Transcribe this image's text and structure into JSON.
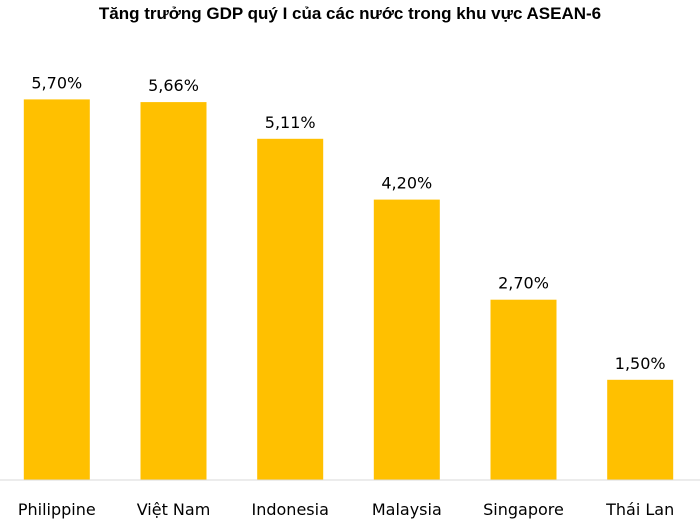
{
  "chart_data": {
    "type": "bar",
    "title": "Tăng trưởng GDP quý I của các nước trong khu vực ASEAN-6",
    "categories": [
      "Philippine",
      "Việt Nam",
      "Indonesia",
      "Malaysia",
      "Singapore",
      "Thái Lan"
    ],
    "values": [
      5.7,
      5.66,
      5.11,
      4.2,
      2.7,
      1.5
    ],
    "data_labels": [
      "5,70%",
      "5,66%",
      "5,11%",
      "4,20%",
      "2,70%",
      "1,50%"
    ],
    "unit": "%",
    "ylim": [
      0,
      6.65
    ],
    "grid": false,
    "legend": false,
    "bar_color": "#FFC000"
  }
}
